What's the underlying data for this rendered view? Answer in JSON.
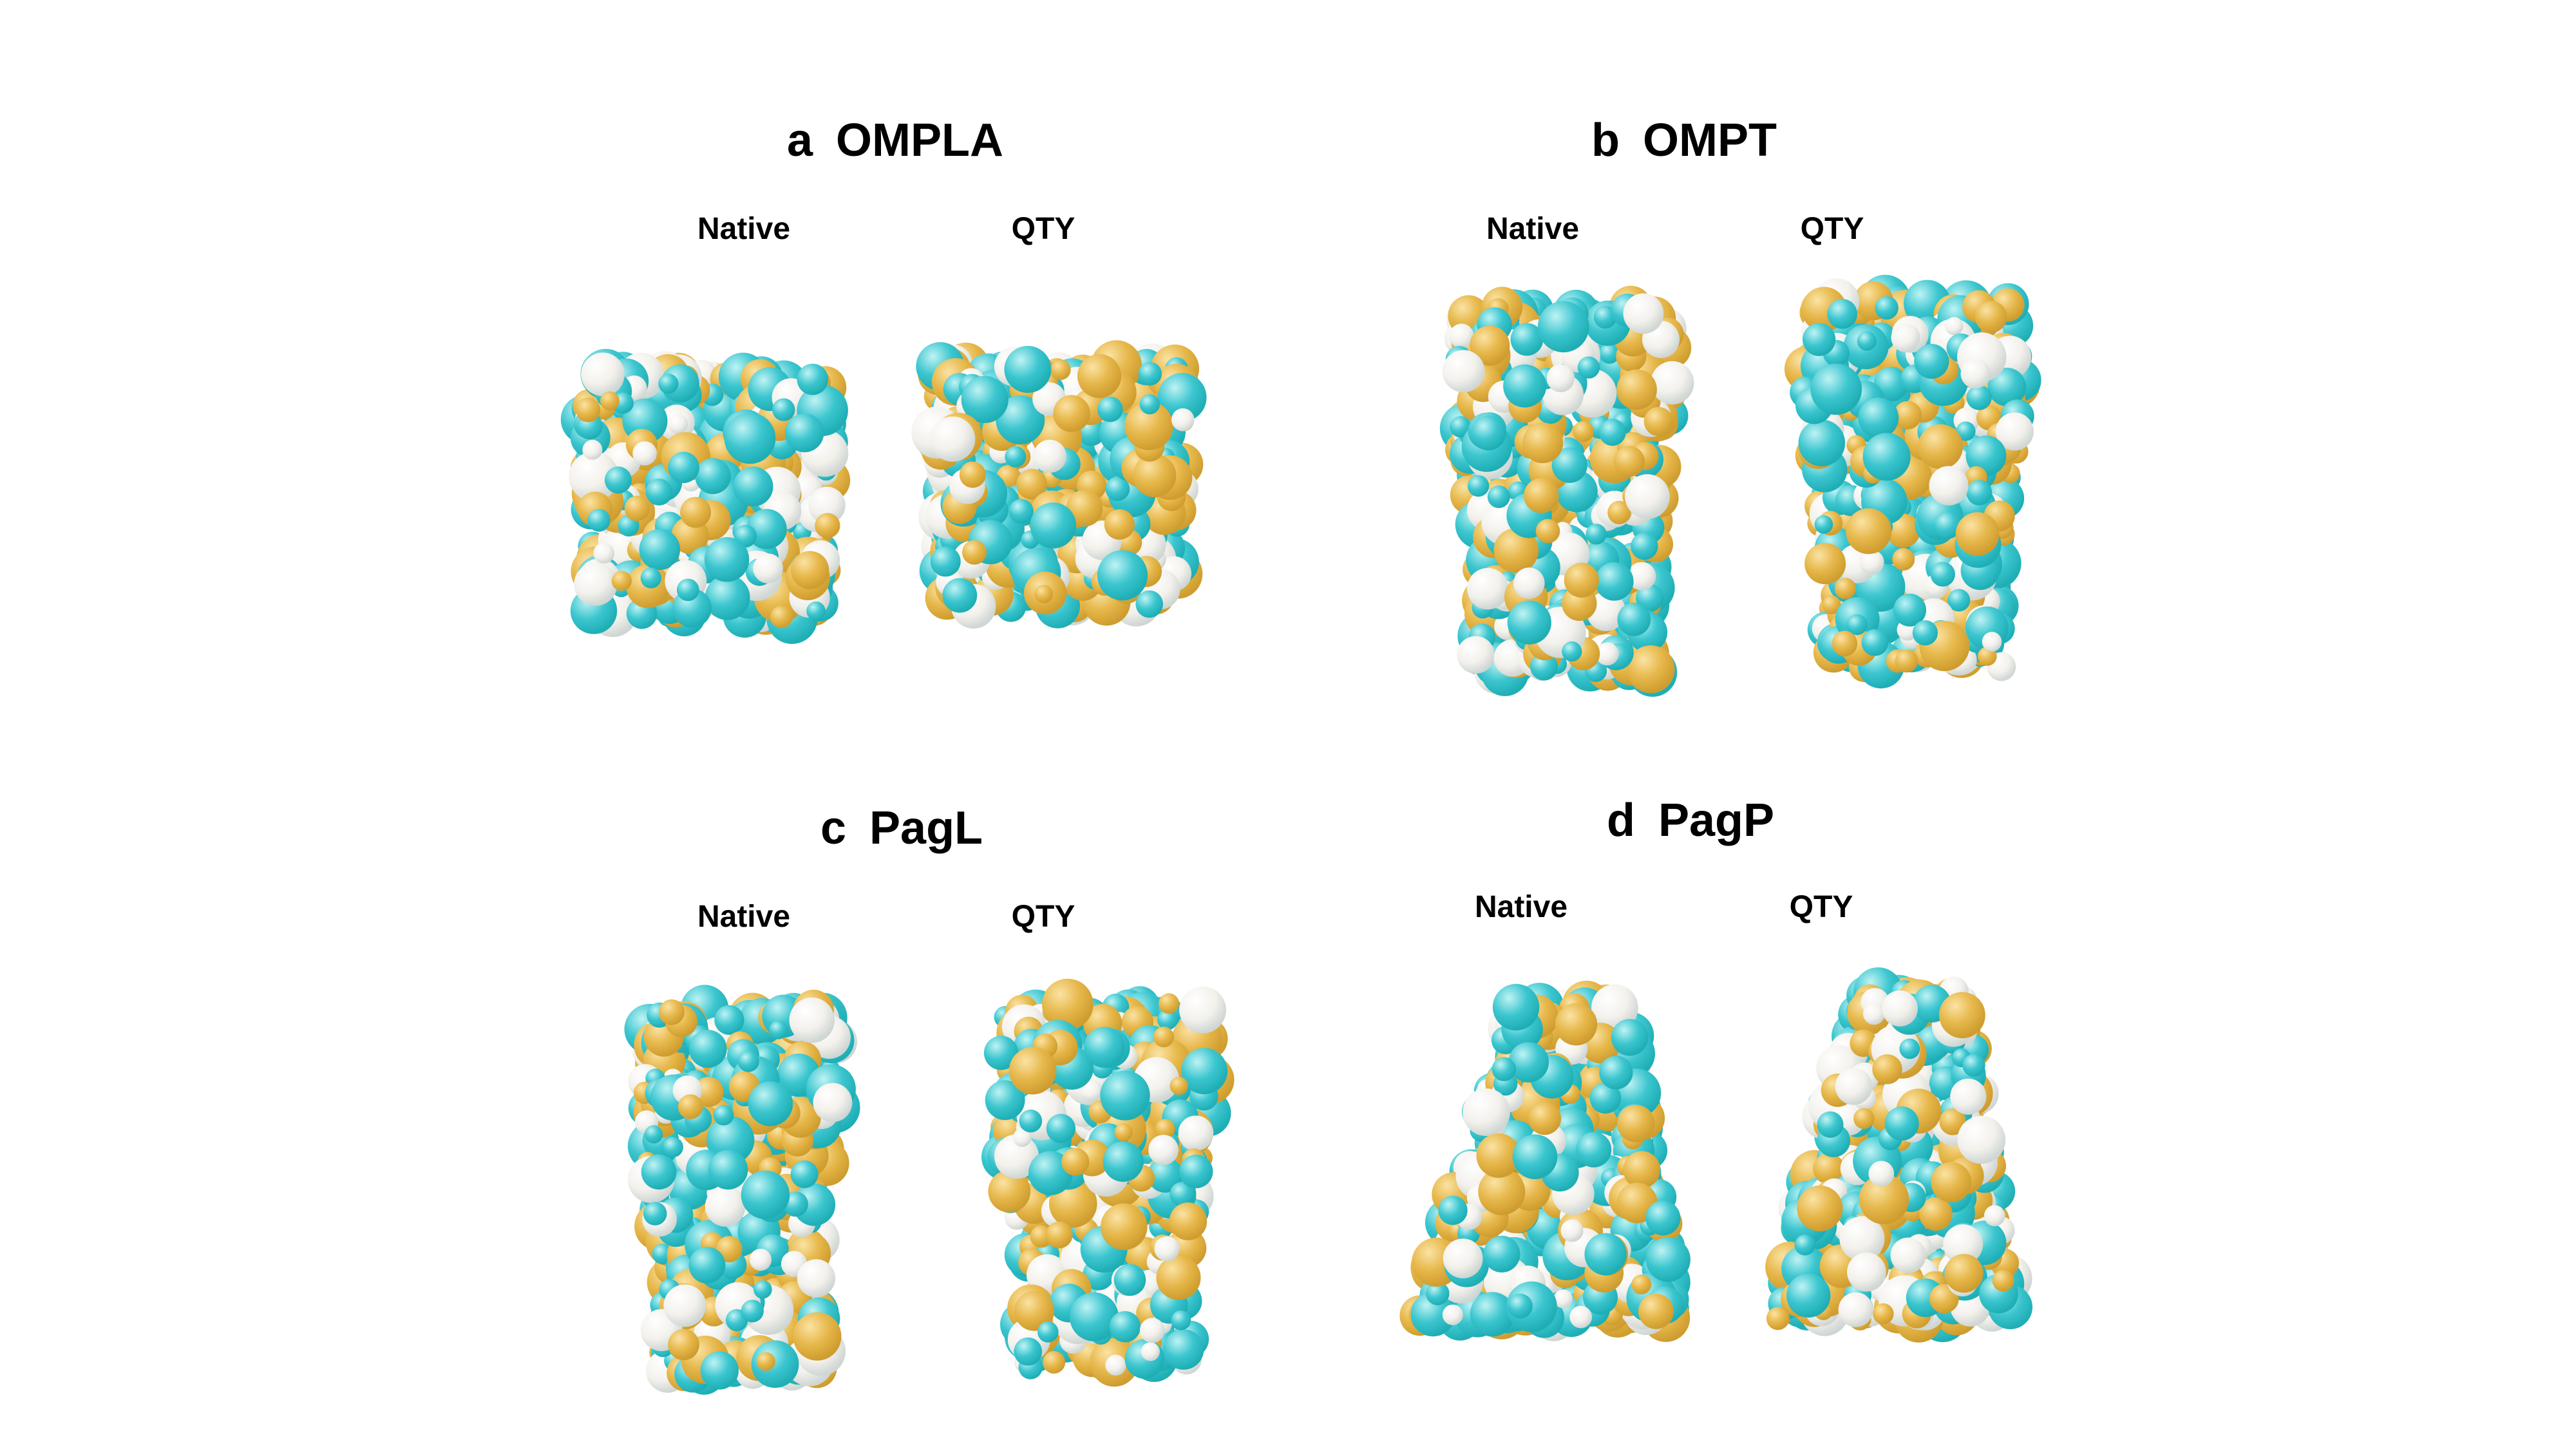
{
  "panels": [
    {
      "letter": "a",
      "name": "OMPLA",
      "labels": [
        "Native",
        "QTY"
      ]
    },
    {
      "letter": "b",
      "name": "OMPT",
      "labels": [
        "Native",
        "QTY"
      ]
    },
    {
      "letter": "c",
      "name": "PagL",
      "labels": [
        "Native",
        "QTY"
      ]
    },
    {
      "letter": "d",
      "name": "PagP",
      "labels": [
        "Native",
        "QTY"
      ]
    }
  ],
  "colors": {
    "cyan": "#3cc6cf",
    "cyan_dark": "#1faeb5",
    "gold": "#e6b74a",
    "gold_dark": "#cf9d2f",
    "white": "#f3f1ec"
  }
}
